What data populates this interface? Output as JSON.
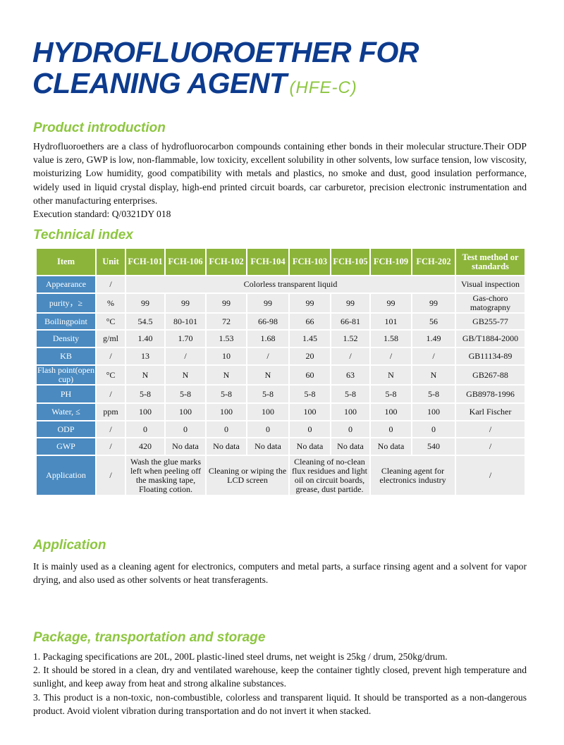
{
  "title": {
    "line1": "HYDROFLUOROETHER FOR",
    "line2": "CLEANING AGENT",
    "code": "(HFE-C)"
  },
  "intro": {
    "heading": "Product introduction",
    "body": "Hydrofluoroethers are a class of hydrofluorocarbon compounds containing ether bonds in their molecular structure.Their ODP value is zero, GWP is low, non-flammable, low toxicity, excellent solubility in other solvents, low surface tension, low viscosity, moisturizing Low humidity, good compatibility with metals and plastics, no smoke and dust, good insulation performance, widely used in liquid crystal display, high-end printed circuit boards, car carburetor, precision electronic instrumentation and other manufacturing enterprises.",
    "standard": "Execution standard: Q/0321DY 018"
  },
  "technical": {
    "heading": "Technical index",
    "headers": [
      "Item",
      "Unit",
      "FCH-101",
      "FCH-106",
      "FCH-102",
      "FCH-104",
      "FCH-103",
      "FCH-105",
      "FCH-109",
      "FCH-202",
      "Test method or standards"
    ],
    "appearance": {
      "item": "Appearance",
      "unit": "/",
      "value": "Colorless transparent liquid",
      "method": "Visual inspection"
    },
    "rows": [
      {
        "item": "purity，≥",
        "unit": "%",
        "values": [
          "99",
          "99",
          "99",
          "99",
          "99",
          "99",
          "99",
          "99"
        ],
        "method": "Gas-choro matograpny"
      },
      {
        "item": "Boilingpoint",
        "unit": "°C",
        "values": [
          "54.5",
          "80-101",
          "72",
          "66-98",
          "66",
          "66-81",
          "101",
          "56"
        ],
        "method": "GB255-77"
      },
      {
        "item": "Density",
        "unit": "g/ml",
        "values": [
          "1.40",
          "1.70",
          "1.53",
          "1.68",
          "1.45",
          "1.52",
          "1.58",
          "1.49"
        ],
        "method": "GB/T1884-2000"
      },
      {
        "item": "KB",
        "unit": "/",
        "values": [
          "13",
          "/",
          "10",
          "/",
          "20",
          "/",
          "/",
          "/"
        ],
        "method": "GB11134-89"
      },
      {
        "item": "Flash point(open cup)",
        "unit": "°C",
        "values": [
          "N",
          "N",
          "N",
          "N",
          "60",
          "63",
          "N",
          "N"
        ],
        "method": "GB267-88"
      },
      {
        "item": "PH",
        "unit": "/",
        "values": [
          "5-8",
          "5-8",
          "5-8",
          "5-8",
          "5-8",
          "5-8",
          "5-8",
          "5-8"
        ],
        "method": "GB8978-1996"
      },
      {
        "item": "Water, ≤",
        "unit": "ppm",
        "values": [
          "100",
          "100",
          "100",
          "100",
          "100",
          "100",
          "100",
          "100"
        ],
        "method": "Karl Fischer"
      },
      {
        "item": "ODP",
        "unit": "/",
        "values": [
          "0",
          "0",
          "0",
          "0",
          "0",
          "0",
          "0",
          "0"
        ],
        "method": "/"
      },
      {
        "item": "GWP",
        "unit": "/",
        "values": [
          "420",
          "No data",
          "No data",
          "No data",
          "No data",
          "No data",
          "No data",
          "540"
        ],
        "method": "/"
      }
    ],
    "application": {
      "item": "Application",
      "unit": "/",
      "values": [
        "Wash the glue marks left when peeling off the masking tape, Floating cotion.",
        "Cleaning or wiping the LCD screen",
        "Cleaning of no-clean flux residues and light oil on circuit boards, grease, dust partide.",
        "Cleaning agent for electronics industry"
      ],
      "method": "/"
    }
  },
  "application": {
    "heading": "Application",
    "body": "It is mainly used as a cleaning agent for electronics, computers and metal parts, a surface rinsing agent and a solvent for vapor drying, and also used as other solvents or heat transferagents."
  },
  "package": {
    "heading": "Package, transportation and storage",
    "items": [
      "1. Packaging specifications are 20L, 200L plastic-lined steel drums, net weight is 25kg / drum, 250kg/drum.",
      "2. It should be stored in a clean, dry and ventilated warehouse, keep the container tightly closed, prevent high temperature and sunlight, and keep away from heat and strong alkaline substances.",
      "3. This product is a non-toxic, non-combustible, colorless and transparent liquid. It should be transported as a non-dangerous product. Avoid violent vibration during transportation and do not invert it when stacked."
    ]
  }
}
